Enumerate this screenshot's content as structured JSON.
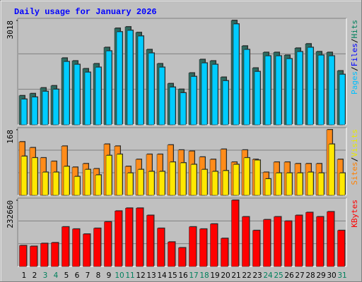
{
  "chart_data": {
    "type": "bar",
    "title": "Daily usage for January 2026",
    "categories": [
      "1",
      "2",
      "3",
      "4",
      "5",
      "6",
      "7",
      "8",
      "9",
      "10",
      "11",
      "12",
      "13",
      "14",
      "15",
      "16",
      "17",
      "18",
      "19",
      "20",
      "21",
      "22",
      "23",
      "24",
      "25",
      "26",
      "27",
      "28",
      "29",
      "30",
      "31"
    ],
    "category_colors": [
      "#000000",
      "#000000",
      "#00805c",
      "#00805c",
      "#000000",
      "#000000",
      "#000000",
      "#000000",
      "#000000",
      "#00805c",
      "#00805c",
      "#000000",
      "#000000",
      "#000000",
      "#000000",
      "#000000",
      "#00805c",
      "#00805c",
      "#000000",
      "#000000",
      "#000000",
      "#000000",
      "#000000",
      "#00805c",
      "#00805c",
      "#000000",
      "#000000",
      "#000000",
      "#000000",
      "#000000",
      "#00805c"
    ],
    "panels": [
      {
        "ylim": [
          0,
          3018
        ],
        "yticks": [
          3018
        ],
        "label": [
          {
            "text": "Pages",
            "color": "#00c0ff"
          },
          {
            "text": "/",
            "color": "#000000"
          },
          {
            "text": "Files",
            "color": "#0000ff"
          },
          {
            "text": "/",
            "color": "#000000"
          },
          {
            "text": "Hits",
            "color": "#00805c"
          }
        ],
        "series": [
          {
            "name": "Hits",
            "color": "#2e6b60",
            "values": [
              842,
              903,
              1068,
              1129,
              1930,
              1848,
              1622,
              1766,
              2238,
              2792,
              2833,
              2669,
              2176,
              1766,
              1191,
              1027,
              1499,
              1889,
              1848,
              1376,
              3018,
              2279,
              1642,
              2094,
              2094,
              2012,
              2217,
              2341,
              2115,
              2094,
              1560
            ]
          },
          {
            "name": "Files",
            "color": "#00ccff",
            "values": [
              740,
              800,
              965,
              1026,
              1827,
              1745,
              1519,
              1663,
              2135,
              2689,
              2730,
              2566,
              2073,
              1663,
              1088,
              924,
              1396,
              1786,
              1745,
              1273,
              2915,
              2176,
              1539,
              1991,
              1991,
              1909,
              2114,
              2238,
              2012,
              1991,
              1457
            ]
          }
        ]
      },
      {
        "ylim": [
          0,
          168
        ],
        "yticks": [
          168
        ],
        "label": [
          {
            "text": "Sites",
            "color": "#ff8000"
          },
          {
            "text": "/",
            "color": "#000000"
          },
          {
            "text": "Visits",
            "color": "#e8e800"
          }
        ],
        "series": [
          {
            "name": "Sites",
            "color": "#ff8c1a",
            "values": [
              137,
              122,
              96,
              87,
              126,
              72,
              81,
              68,
              131,
              126,
              74,
              92,
              105,
              105,
              129,
              116,
              113,
              98,
              92,
              118,
              85,
              116,
              92,
              59,
              85,
              85,
              81,
              81,
              81,
              168,
              92
            ]
          },
          {
            "name": "Visits",
            "color": "#ffe800",
            "values": [
              100,
              96,
              59,
              59,
              74,
              48,
              66,
              52,
              102,
              105,
              57,
              66,
              61,
              61,
              85,
              83,
              79,
              66,
              61,
              63,
              79,
              96,
              90,
              42,
              57,
              57,
              57,
              59,
              57,
              131,
              57
            ]
          }
        ]
      },
      {
        "ylim": [
          0,
          232660
        ],
        "yticks": [
          232660
        ],
        "label": [
          {
            "text": "KBytes",
            "color": "#ff0000"
          }
        ],
        "series": [
          {
            "name": "KBytes",
            "color": "#ff0000",
            "values": [
              73341,
              70812,
              80928,
              83457,
              139095,
              131508,
              113805,
              134037,
              156798,
              194733,
              204849,
              204849,
              179559,
              134037,
              86000,
              65754,
              139095,
              131508,
              149211,
              98631,
              232660,
              174501,
              126450,
              164385,
              174501,
              159327,
              179559,
              189675,
              174501,
              192204,
              126450
            ]
          }
        ]
      }
    ]
  }
}
